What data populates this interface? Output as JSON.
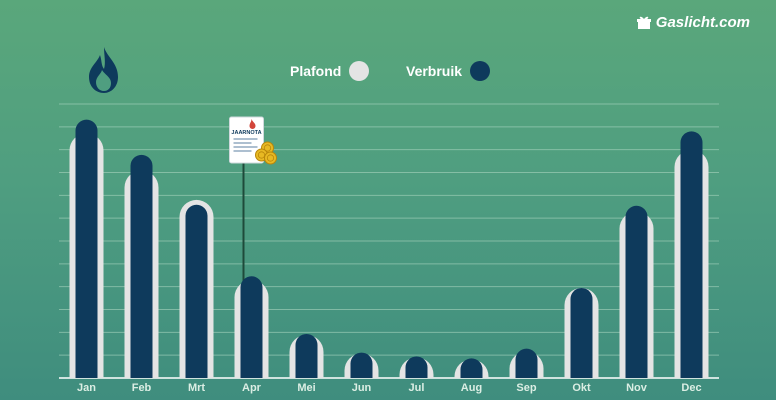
{
  "brand": {
    "name": "Gaslicht.com"
  },
  "icons": {
    "flame": "flame-icon",
    "brand": "gift-box-icon",
    "annual_statement": "annual-statement-document-icon"
  },
  "legend": [
    {
      "label": "Plafond",
      "color": "#e4e4e4"
    },
    {
      "label": "Verbruik",
      "color": "#0e3a5c"
    }
  ],
  "annotation": {
    "label": "JAARNOTA",
    "month": "Apr"
  },
  "colors": {
    "background_top": "#5aa77b",
    "background_bottom": "#3f8d7e",
    "plafond": "#e4e4e4",
    "verbruik": "#0e3a5c",
    "grid": "#a9d4bf",
    "ticks": "#dbeee4",
    "line": "#1e4a3a"
  },
  "chart_data": {
    "type": "bar",
    "categories": [
      "Jan",
      "Feb",
      "Mrt",
      "Apr",
      "Mei",
      "Jun",
      "Jul",
      "Aug",
      "Sep",
      "Okt",
      "Nov",
      "Dec"
    ],
    "series": [
      {
        "name": "Plafond",
        "values": [
          250,
          212,
          182,
          100,
          44,
          25,
          21,
          19,
          27,
          92,
          170,
          233
        ]
      },
      {
        "name": "Verbruik",
        "values": [
          264,
          228,
          177,
          104,
          45,
          26,
          22,
          20,
          30,
          92,
          176,
          252
        ]
      }
    ],
    "ylim": [
      0,
      280
    ],
    "grid": true,
    "legend_position": "top-center",
    "title": "",
    "xlabel": "",
    "ylabel": ""
  }
}
